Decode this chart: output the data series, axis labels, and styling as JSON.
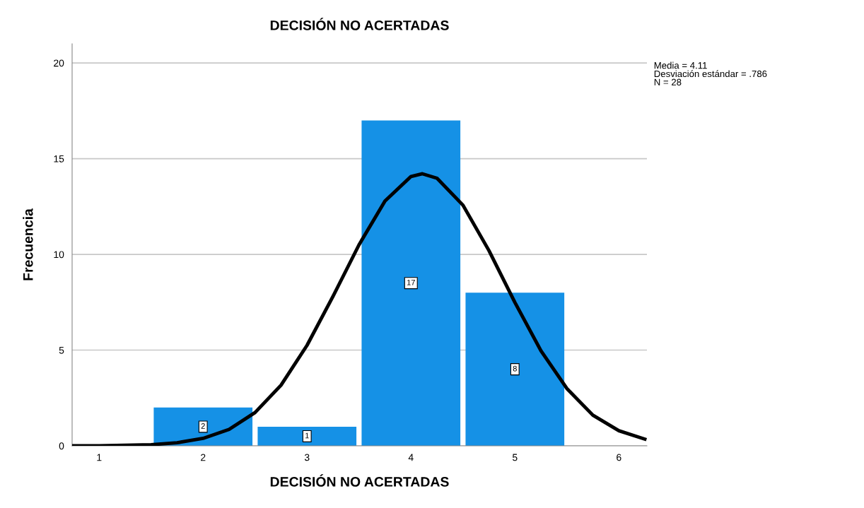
{
  "chart_data": {
    "type": "histogram",
    "title": "DECISIÓN NO ACERTADAS",
    "xlabel": "DECISIÓN NO ACERTADAS",
    "ylabel": "Frecuencia",
    "bins": [
      1.5,
      2.5,
      3.5,
      4.5,
      5.5
    ],
    "values": [
      2,
      1,
      17,
      8
    ],
    "color": "#1591e6",
    "value_labels": [
      "2",
      "1",
      "17",
      "8"
    ],
    "series": [
      {
        "type": "line",
        "color": "#000000",
        "x": [
          0.75,
          1.0,
          1.5,
          1.75,
          2.0,
          2.25,
          2.5,
          2.75,
          3.0,
          3.25,
          3.5,
          3.75,
          4.0,
          4.11,
          4.25,
          4.5,
          4.75,
          5.0,
          5.25,
          5.5,
          5.75,
          6.0,
          6.25
        ],
        "values": [
          0.0,
          0.0,
          0.06,
          0.16,
          0.39,
          0.86,
          1.74,
          3.17,
          5.25,
          7.81,
          10.5,
          12.79,
          14.07,
          14.21,
          13.98,
          12.57,
          10.2,
          7.49,
          4.97,
          2.99,
          1.6,
          0.79,
          0.35
        ]
      }
    ],
    "xlim": [
      0.74,
      6.27
    ],
    "ylim": [
      0,
      21
    ],
    "xticks": [
      1,
      2,
      3,
      4,
      5,
      6
    ],
    "yticks": [
      0,
      5,
      10,
      15,
      20
    ],
    "grid": "y",
    "annotations": [
      "Media = 4.11",
      "Desviación estándar = .786",
      "N = 28"
    ]
  }
}
